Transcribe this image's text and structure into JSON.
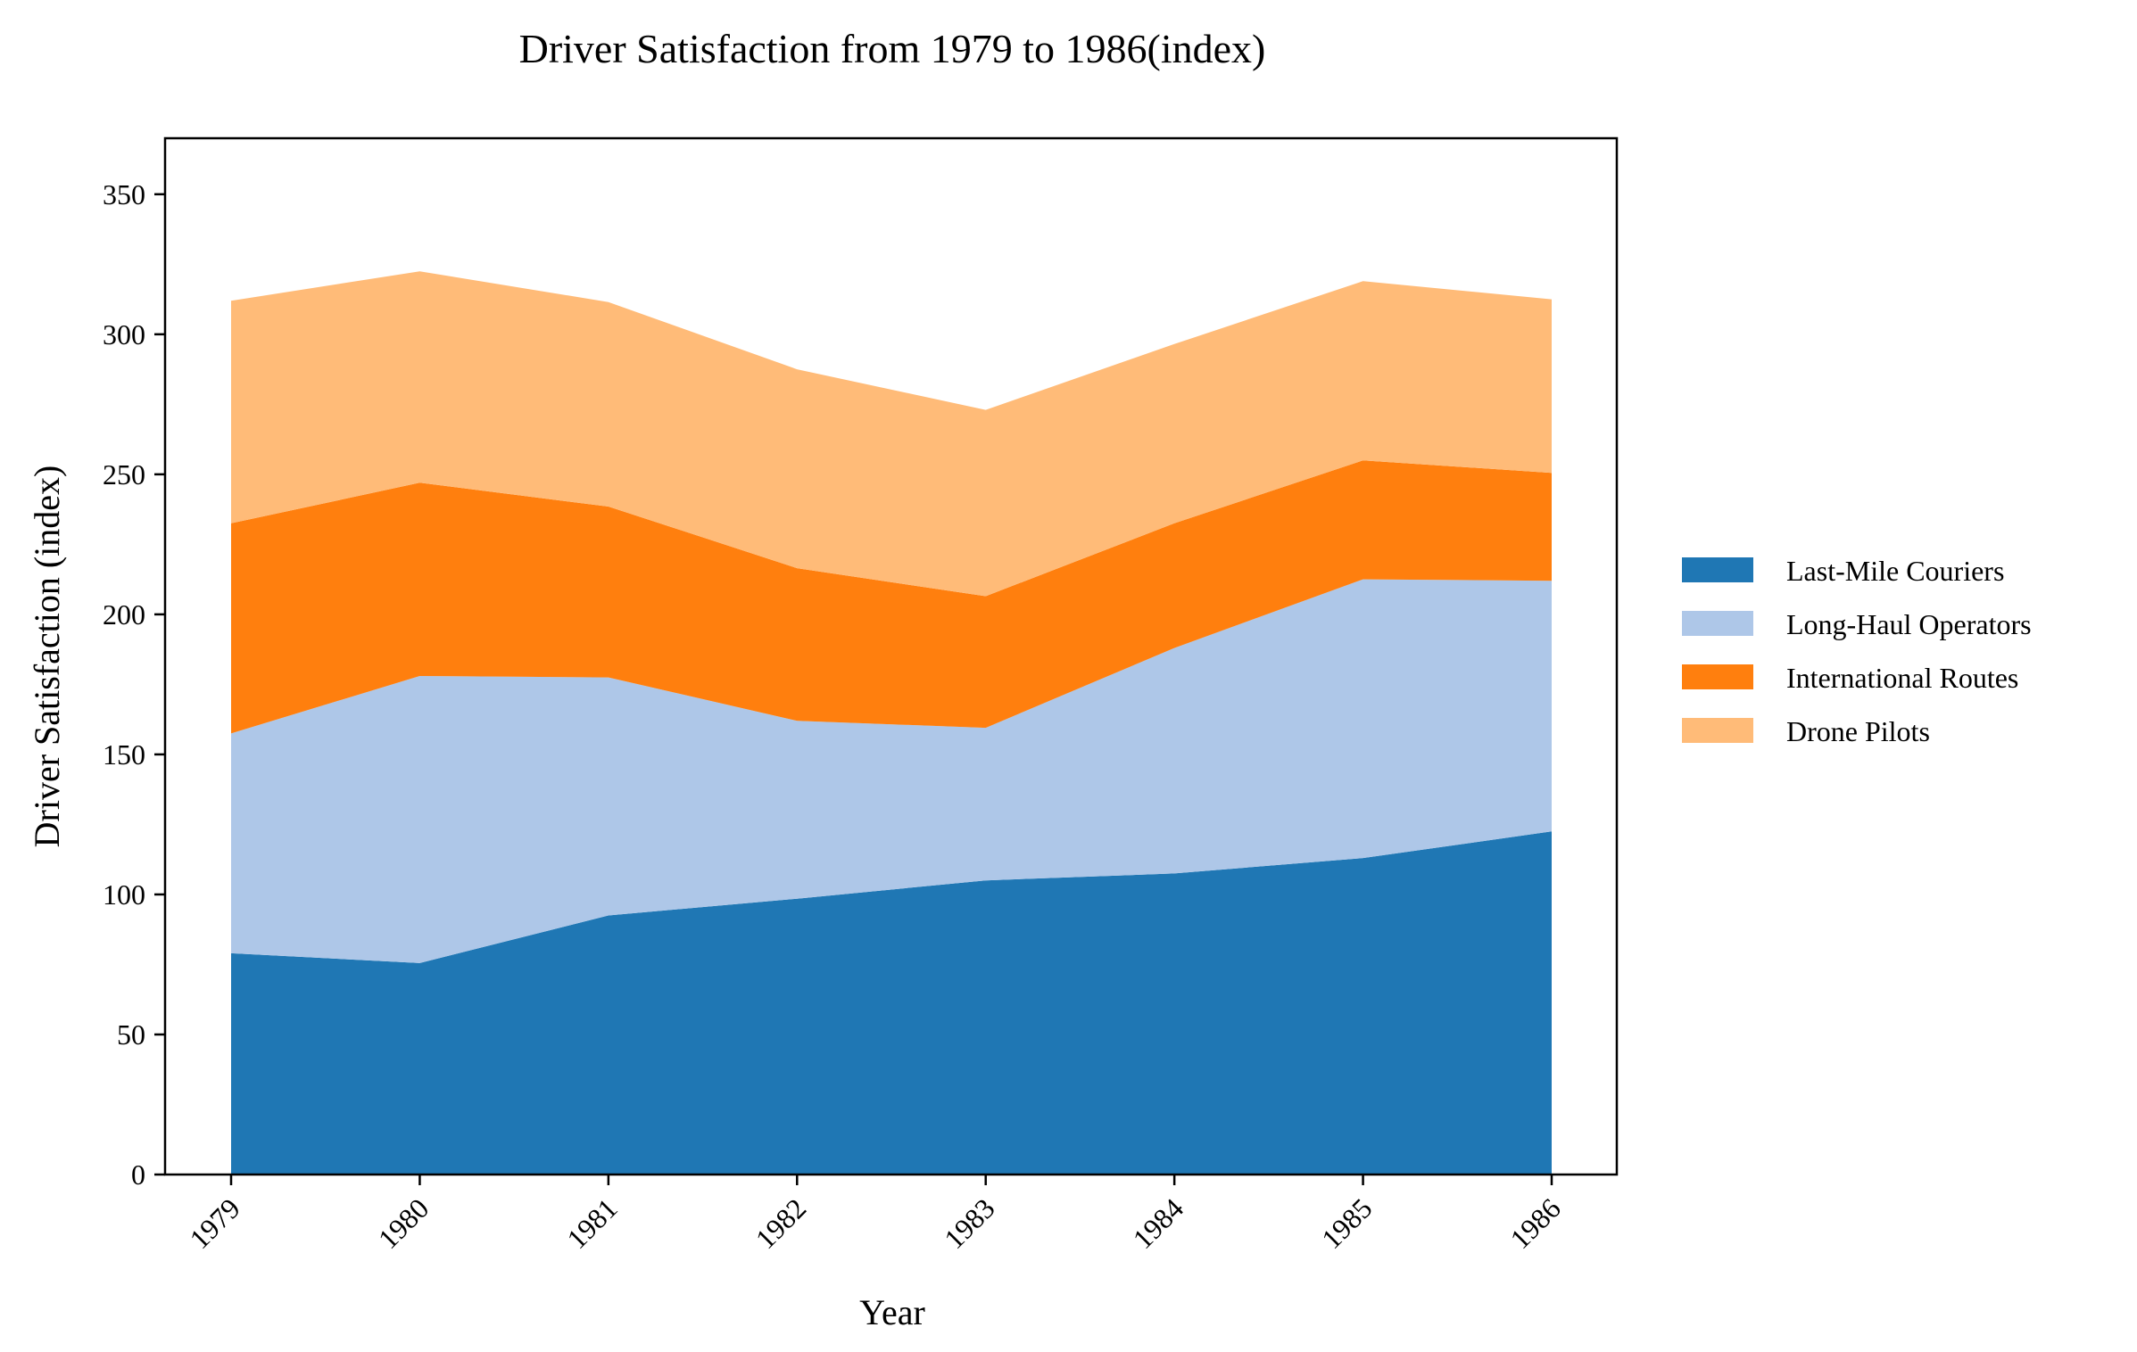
{
  "chart_data": {
    "type": "area",
    "stacked": true,
    "title": "Driver Satisfaction from 1979 to 1986(index)",
    "xlabel": "Year",
    "ylabel": "Driver Satisfaction (index)",
    "categories": [
      "1979",
      "1980",
      "1981",
      "1982",
      "1983",
      "1984",
      "1985",
      "1986"
    ],
    "ylim": [
      0,
      370
    ],
    "yticks": [
      0,
      50,
      100,
      150,
      200,
      250,
      300,
      350
    ],
    "grid": false,
    "legend_position": "right",
    "series": [
      {
        "name": "Last-Mile Couriers",
        "color": "#1f77b4",
        "values": [
          79,
          75.5,
          92.5,
          98.5,
          105,
          107.5,
          113,
          122.5
        ]
      },
      {
        "name": "Long-Haul Operators",
        "color": "#aec7e8",
        "values": [
          78.5,
          102.5,
          85,
          63.5,
          54.5,
          80.5,
          99.5,
          89.5
        ]
      },
      {
        "name": "International Routes",
        "color": "#ff7f0e",
        "values": [
          75,
          69,
          61,
          54.5,
          47,
          44.5,
          42.5,
          38.5
        ]
      },
      {
        "name": "Drone Pilots",
        "color": "#ffbb78",
        "values": [
          79.5,
          75.5,
          73,
          71,
          66.5,
          64,
          64,
          62
        ]
      }
    ]
  }
}
